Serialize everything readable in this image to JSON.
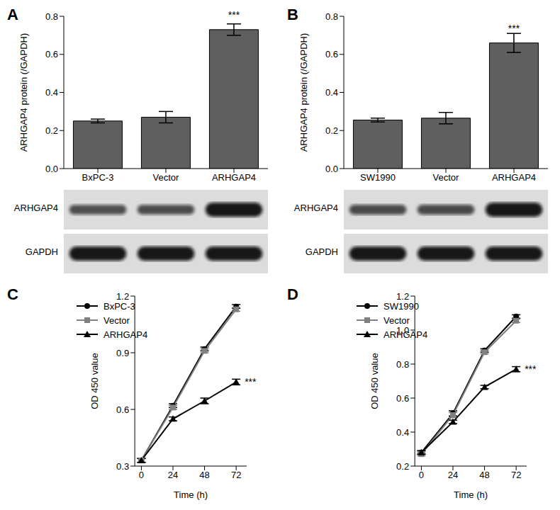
{
  "chart_data": [
    {
      "type": "bar",
      "title": "A",
      "ylabel": "ARHGAP4 protein (/GAPDH)",
      "categories": [
        "BxPC-3",
        "Vector",
        "ARHGAP4"
      ],
      "values": [
        0.25,
        0.27,
        0.73
      ],
      "errors": [
        0.01,
        0.03,
        0.03
      ],
      "color": "#5f5f5f",
      "ylim": [
        0,
        0.8
      ],
      "yticks": [
        {
          "value": 0,
          "label": "0.0"
        },
        0.2,
        0.4,
        0.6,
        0.8
      ],
      "annotations": [
        {
          "category": "ARHGAP4",
          "text": "***"
        }
      ],
      "blot": [
        "ARHGAP4",
        "GAPDH"
      ]
    },
    {
      "type": "bar",
      "title": "B",
      "ylabel": "ARHGAP4 protein (/GAPDH)",
      "categories": [
        "SW1990",
        "Vector",
        "ARHGAP4"
      ],
      "values": [
        0.255,
        0.265,
        0.66
      ],
      "errors": [
        0.01,
        0.03,
        0.05
      ],
      "color": "#5f5f5f",
      "ylim": [
        0,
        0.8
      ],
      "yticks": [
        {
          "value": 0,
          "label": "0.0"
        },
        0.2,
        0.4,
        0.6,
        0.8
      ],
      "annotations": [
        {
          "category": "ARHGAP4",
          "text": "***"
        }
      ],
      "blot": [
        "ARHGAP4",
        "GAPDH"
      ]
    },
    {
      "type": "line",
      "title": "C",
      "xlabel": "Time (h)",
      "ylabel": "OD 450 value",
      "x": [
        0,
        24,
        48,
        72
      ],
      "xlim": [
        -5,
        80
      ],
      "xticks": [
        0,
        24,
        48,
        72
      ],
      "ylim": [
        0.3,
        1.2
      ],
      "yticks": [
        0.3,
        0.6,
        0.9,
        1.2
      ],
      "legend": "upper left",
      "series": [
        {
          "name": "BxPC-3",
          "color": "#000000",
          "marker": "circle",
          "values": [
            0.33,
            0.62,
            0.92,
            1.145
          ],
          "errors": [
            0.01,
            0.01,
            0.01,
            0.01
          ]
        },
        {
          "name": "Vector",
          "color": "#808080",
          "marker": "square",
          "values": [
            0.33,
            0.61,
            0.91,
            1.13
          ],
          "errors": [
            0.01,
            0.01,
            0.01,
            0.01
          ]
        },
        {
          "name": "ARHGAP4",
          "color": "#000000",
          "marker": "triangle",
          "values": [
            0.33,
            0.55,
            0.645,
            0.745
          ],
          "errors": [
            0.01,
            0.01,
            0.015,
            0.015
          ]
        }
      ],
      "annotations": [
        {
          "series": "ARHGAP4",
          "x": 72,
          "text": "***"
        }
      ]
    },
    {
      "type": "line",
      "title": "D",
      "xlabel": "Time (h)",
      "ylabel": "OD 450 value",
      "x": [
        0,
        24,
        48,
        72
      ],
      "xlim": [
        -5,
        80
      ],
      "xticks": [
        0,
        24,
        48,
        72
      ],
      "ylim": [
        0.2,
        1.2
      ],
      "yticks": [
        0.2,
        0.4,
        0.6,
        0.8,
        {
          "value": 1,
          "label": "1.0"
        },
        1.2
      ],
      "legend": "upper left",
      "series": [
        {
          "name": "SW1990",
          "color": "#000000",
          "marker": "circle",
          "values": [
            0.28,
            0.51,
            0.88,
            1.08
          ],
          "errors": [
            0.01,
            0.015,
            0.01,
            0.01
          ]
        },
        {
          "name": "Vector",
          "color": "#808080",
          "marker": "square",
          "values": [
            0.27,
            0.5,
            0.87,
            1.055
          ],
          "errors": [
            0.01,
            0.015,
            0.01,
            0.01
          ]
        },
        {
          "name": "ARHGAP4",
          "color": "#000000",
          "marker": "triangle",
          "values": [
            0.28,
            0.46,
            0.665,
            0.77
          ],
          "errors": [
            0.01,
            0.01,
            0.01,
            0.015
          ]
        }
      ],
      "annotations": [
        {
          "series": "ARHGAP4",
          "x": 72,
          "text": "***"
        }
      ]
    }
  ]
}
